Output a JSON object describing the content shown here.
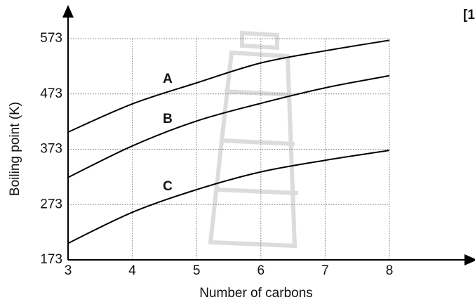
{
  "chart_data": {
    "type": "line",
    "corner_text": "[1",
    "x_label": "Number of carbons",
    "y_label": "Boiling point (K)",
    "x": [
      3,
      4,
      5,
      6,
      7,
      8
    ],
    "xlim": [
      3,
      8
    ],
    "xticks": [
      3,
      4,
      5,
      6,
      7,
      8
    ],
    "ylim": [
      173,
      573
    ],
    "yticks": [
      173,
      273,
      373,
      473,
      573
    ],
    "grid": true,
    "series": [
      {
        "name": "A",
        "color": "#000000",
        "values": [
          404,
          455,
          493,
          529,
          551,
          570
        ]
      },
      {
        "name": "B",
        "color": "#000000",
        "values": [
          322,
          379,
          424,
          456,
          484,
          506
        ]
      },
      {
        "name": "C",
        "color": "#000000",
        "values": [
          203,
          259,
          300,
          332,
          353,
          371
        ]
      }
    ]
  }
}
